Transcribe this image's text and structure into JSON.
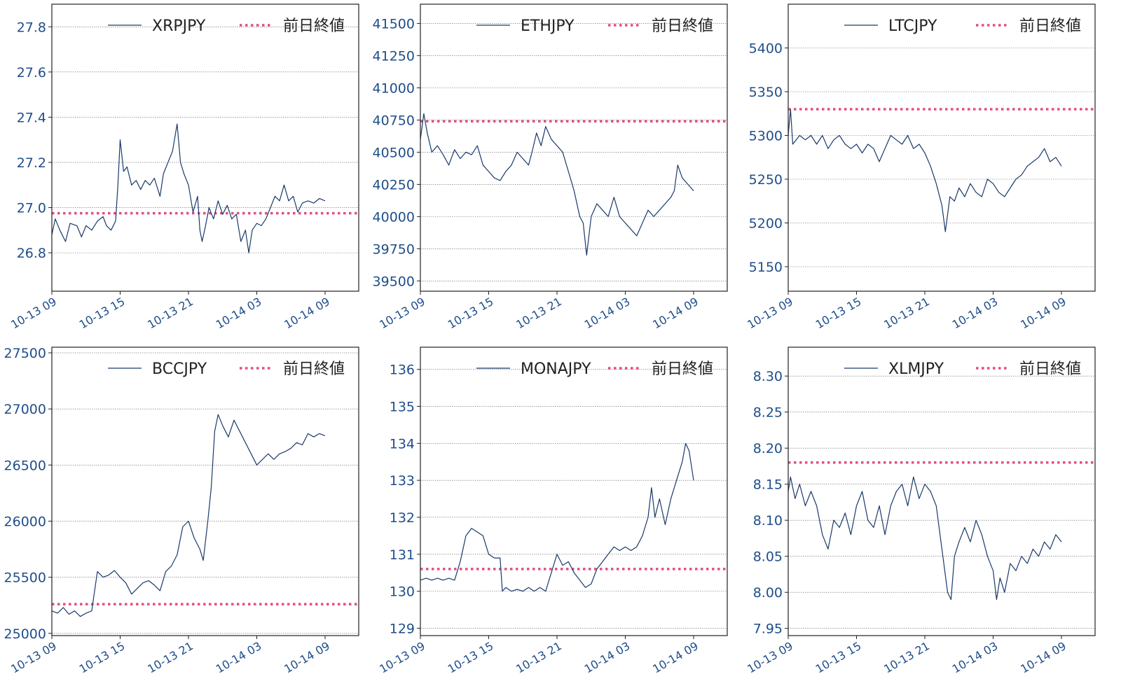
{
  "colors": {
    "series": "#1a3a6b",
    "prev_close": "#e0507a",
    "tick_text": "#1f4e8a",
    "grid": "#666666",
    "frame": "#222222"
  },
  "x_ticks": [
    "10-13 09",
    "10-13 15",
    "10-13 21",
    "10-14 03",
    "10-14 09"
  ],
  "chart_data": [
    {
      "type": "line",
      "series": [
        {
          "name": "XRPJPY"
        },
        {
          "name": "前日終値"
        }
      ],
      "ylim": [
        26.63,
        27.9
      ],
      "yticks": [
        "26.8",
        "27.0",
        "27.2",
        "27.4",
        "27.6",
        "27.8"
      ],
      "prev_close": 26.975,
      "points": [
        [
          0,
          26.88
        ],
        [
          0.3,
          26.95
        ],
        [
          0.7,
          26.9
        ],
        [
          1.2,
          26.85
        ],
        [
          1.6,
          26.93
        ],
        [
          2.2,
          26.92
        ],
        [
          2.6,
          26.87
        ],
        [
          3,
          26.92
        ],
        [
          3.5,
          26.9
        ],
        [
          4,
          26.94
        ],
        [
          4.5,
          26.96
        ],
        [
          4.8,
          26.92
        ],
        [
          5.2,
          26.9
        ],
        [
          5.6,
          26.94
        ],
        [
          5.8,
          27.1
        ],
        [
          6,
          27.3
        ],
        [
          6.3,
          27.16
        ],
        [
          6.6,
          27.18
        ],
        [
          7,
          27.1
        ],
        [
          7.4,
          27.12
        ],
        [
          7.8,
          27.08
        ],
        [
          8.2,
          27.12
        ],
        [
          8.6,
          27.1
        ],
        [
          9,
          27.13
        ],
        [
          9.5,
          27.05
        ],
        [
          9.8,
          27.15
        ],
        [
          10.2,
          27.2
        ],
        [
          10.6,
          27.25
        ],
        [
          11,
          27.37
        ],
        [
          11.3,
          27.2
        ],
        [
          11.6,
          27.15
        ],
        [
          12,
          27.1
        ],
        [
          12.4,
          26.98
        ],
        [
          12.8,
          27.05
        ],
        [
          13,
          26.9
        ],
        [
          13.2,
          26.85
        ],
        [
          13.5,
          26.92
        ],
        [
          13.8,
          27.0
        ],
        [
          14.2,
          26.95
        ],
        [
          14.6,
          27.03
        ],
        [
          15,
          26.97
        ],
        [
          15.4,
          27.01
        ],
        [
          15.8,
          26.95
        ],
        [
          16.2,
          26.97
        ],
        [
          16.6,
          26.85
        ],
        [
          17,
          26.9
        ],
        [
          17.3,
          26.8
        ],
        [
          17.6,
          26.9
        ],
        [
          18,
          26.93
        ],
        [
          18.4,
          26.92
        ],
        [
          18.8,
          26.95
        ],
        [
          19.2,
          27.0
        ],
        [
          19.6,
          27.05
        ],
        [
          20,
          27.03
        ],
        [
          20.4,
          27.1
        ],
        [
          20.8,
          27.03
        ],
        [
          21.2,
          27.05
        ],
        [
          21.6,
          26.98
        ],
        [
          22,
          27.02
        ],
        [
          22.5,
          27.03
        ],
        [
          23,
          27.02
        ],
        [
          23.5,
          27.04
        ],
        [
          24,
          27.03
        ]
      ]
    },
    {
      "type": "line",
      "series": [
        {
          "name": "ETHJPY"
        },
        {
          "name": "前日終値"
        }
      ],
      "ylim": [
        39420,
        41650
      ],
      "yticks": [
        "39500",
        "39750",
        "40000",
        "40250",
        "40500",
        "40750",
        "41000",
        "41250",
        "41500"
      ],
      "prev_close": 40740,
      "points": [
        [
          0,
          40600
        ],
        [
          0.3,
          40800
        ],
        [
          0.6,
          40650
        ],
        [
          1,
          40500
        ],
        [
          1.5,
          40550
        ],
        [
          2,
          40480
        ],
        [
          2.5,
          40400
        ],
        [
          3,
          40520
        ],
        [
          3.5,
          40450
        ],
        [
          4,
          40500
        ],
        [
          4.5,
          40480
        ],
        [
          5,
          40550
        ],
        [
          5.5,
          40400
        ],
        [
          6,
          40350
        ],
        [
          6.5,
          40300
        ],
        [
          7,
          40280
        ],
        [
          7.5,
          40350
        ],
        [
          8,
          40400
        ],
        [
          8.5,
          40500
        ],
        [
          9,
          40450
        ],
        [
          9.5,
          40400
        ],
        [
          9.8,
          40500
        ],
        [
          10.2,
          40650
        ],
        [
          10.6,
          40550
        ],
        [
          11,
          40700
        ],
        [
          11.5,
          40600
        ],
        [
          12,
          40550
        ],
        [
          12.5,
          40500
        ],
        [
          13,
          40350
        ],
        [
          13.5,
          40200
        ],
        [
          14,
          40000
        ],
        [
          14.3,
          39950
        ],
        [
          14.6,
          39700
        ],
        [
          15,
          40000
        ],
        [
          15.5,
          40100
        ],
        [
          16,
          40050
        ],
        [
          16.5,
          40000
        ],
        [
          17,
          40150
        ],
        [
          17.5,
          40000
        ],
        [
          18,
          39950
        ],
        [
          18.5,
          39900
        ],
        [
          19,
          39850
        ],
        [
          19.5,
          39950
        ],
        [
          20,
          40050
        ],
        [
          20.5,
          40000
        ],
        [
          21,
          40050
        ],
        [
          21.5,
          40100
        ],
        [
          22,
          40150
        ],
        [
          22.3,
          40200
        ],
        [
          22.6,
          40400
        ],
        [
          23,
          40300
        ],
        [
          23.5,
          40250
        ],
        [
          24,
          40200
        ]
      ]
    },
    {
      "type": "line",
      "series": [
        {
          "name": "LTCJPY"
        },
        {
          "name": "前日終値"
        }
      ],
      "ylim": [
        5122,
        5450
      ],
      "yticks": [
        "5150",
        "5200",
        "5250",
        "5300",
        "5350",
        "5400"
      ],
      "prev_close": 5330,
      "points": [
        [
          0,
          5300
        ],
        [
          0.2,
          5330
        ],
        [
          0.4,
          5290
        ],
        [
          1,
          5300
        ],
        [
          1.5,
          5295
        ],
        [
          2,
          5300
        ],
        [
          2.5,
          5290
        ],
        [
          3,
          5300
        ],
        [
          3.5,
          5285
        ],
        [
          4,
          5295
        ],
        [
          4.5,
          5300
        ],
        [
          5,
          5290
        ],
        [
          5.5,
          5285
        ],
        [
          6,
          5290
        ],
        [
          6.5,
          5280
        ],
        [
          7,
          5290
        ],
        [
          7.5,
          5285
        ],
        [
          8,
          5270
        ],
        [
          8.5,
          5285
        ],
        [
          9,
          5300
        ],
        [
          9.5,
          5295
        ],
        [
          10,
          5290
        ],
        [
          10.5,
          5300
        ],
        [
          11,
          5285
        ],
        [
          11.5,
          5290
        ],
        [
          12,
          5280
        ],
        [
          12.5,
          5265
        ],
        [
          13,
          5245
        ],
        [
          13.5,
          5220
        ],
        [
          13.8,
          5190
        ],
        [
          14.2,
          5230
        ],
        [
          14.6,
          5225
        ],
        [
          15,
          5240
        ],
        [
          15.5,
          5230
        ],
        [
          16,
          5245
        ],
        [
          16.5,
          5235
        ],
        [
          17,
          5230
        ],
        [
          17.5,
          5250
        ],
        [
          18,
          5245
        ],
        [
          18.5,
          5235
        ],
        [
          19,
          5230
        ],
        [
          19.5,
          5240
        ],
        [
          20,
          5250
        ],
        [
          20.5,
          5255
        ],
        [
          21,
          5265
        ],
        [
          21.5,
          5270
        ],
        [
          22,
          5275
        ],
        [
          22.5,
          5285
        ],
        [
          23,
          5270
        ],
        [
          23.5,
          5275
        ],
        [
          24,
          5265
        ]
      ]
    },
    {
      "type": "line",
      "series": [
        {
          "name": "BCCJPY"
        },
        {
          "name": "前日終値"
        }
      ],
      "ylim": [
        24980,
        27550
      ],
      "yticks": [
        "25000",
        "25500",
        "26000",
        "26500",
        "27000",
        "27500"
      ],
      "prev_close": 25260,
      "points": [
        [
          0,
          25200
        ],
        [
          0.5,
          25180
        ],
        [
          1,
          25230
        ],
        [
          1.5,
          25170
        ],
        [
          2,
          25200
        ],
        [
          2.5,
          25150
        ],
        [
          3,
          25180
        ],
        [
          3.5,
          25200
        ],
        [
          4,
          25550
        ],
        [
          4.5,
          25500
        ],
        [
          5,
          25520
        ],
        [
          5.5,
          25560
        ],
        [
          6,
          25500
        ],
        [
          6.5,
          25450
        ],
        [
          7,
          25350
        ],
        [
          7.5,
          25400
        ],
        [
          8,
          25450
        ],
        [
          8.5,
          25470
        ],
        [
          9,
          25430
        ],
        [
          9.5,
          25380
        ],
        [
          10,
          25550
        ],
        [
          10.5,
          25600
        ],
        [
          11,
          25700
        ],
        [
          11.5,
          25950
        ],
        [
          12,
          26000
        ],
        [
          12.5,
          25850
        ],
        [
          13,
          25750
        ],
        [
          13.3,
          25650
        ],
        [
          13.7,
          26000
        ],
        [
          14,
          26300
        ],
        [
          14.3,
          26800
        ],
        [
          14.6,
          26950
        ],
        [
          15,
          26850
        ],
        [
          15.5,
          26750
        ],
        [
          16,
          26900
        ],
        [
          16.5,
          26800
        ],
        [
          17,
          26700
        ],
        [
          17.5,
          26600
        ],
        [
          18,
          26500
        ],
        [
          18.5,
          26550
        ],
        [
          19,
          26600
        ],
        [
          19.5,
          26550
        ],
        [
          20,
          26600
        ],
        [
          20.5,
          26620
        ],
        [
          21,
          26650
        ],
        [
          21.5,
          26700
        ],
        [
          22,
          26680
        ],
        [
          22.5,
          26780
        ],
        [
          23,
          26750
        ],
        [
          23.5,
          26780
        ],
        [
          24,
          26760
        ]
      ]
    },
    {
      "type": "line",
      "series": [
        {
          "name": "MONAJPY"
        },
        {
          "name": "前日終値"
        }
      ],
      "ylim": [
        128.8,
        136.6
      ],
      "yticks": [
        "129",
        "130",
        "131",
        "132",
        "133",
        "134",
        "135",
        "136"
      ],
      "prev_close": 130.6,
      "points": [
        [
          0,
          130.3
        ],
        [
          0.5,
          130.35
        ],
        [
          1,
          130.3
        ],
        [
          1.5,
          130.35
        ],
        [
          2,
          130.3
        ],
        [
          2.5,
          130.35
        ],
        [
          3,
          130.3
        ],
        [
          3.5,
          130.8
        ],
        [
          4,
          131.5
        ],
        [
          4.5,
          131.7
        ],
        [
          5,
          131.6
        ],
        [
          5.5,
          131.5
        ],
        [
          6,
          131.0
        ],
        [
          6.5,
          130.9
        ],
        [
          7,
          130.9
        ],
        [
          7.2,
          130.0
        ],
        [
          7.5,
          130.1
        ],
        [
          8,
          130.0
        ],
        [
          8.5,
          130.05
        ],
        [
          9,
          130.0
        ],
        [
          9.5,
          130.1
        ],
        [
          10,
          130.0
        ],
        [
          10.5,
          130.1
        ],
        [
          11,
          130.0
        ],
        [
          11.5,
          130.5
        ],
        [
          12,
          131.0
        ],
        [
          12.5,
          130.7
        ],
        [
          13,
          130.8
        ],
        [
          13.5,
          130.5
        ],
        [
          14,
          130.3
        ],
        [
          14.5,
          130.1
        ],
        [
          15,
          130.2
        ],
        [
          15.5,
          130.6
        ],
        [
          16,
          130.8
        ],
        [
          16.5,
          131.0
        ],
        [
          17,
          131.2
        ],
        [
          17.5,
          131.1
        ],
        [
          18,
          131.2
        ],
        [
          18.5,
          131.1
        ],
        [
          19,
          131.2
        ],
        [
          19.5,
          131.5
        ],
        [
          20,
          132.0
        ],
        [
          20.3,
          132.8
        ],
        [
          20.6,
          132.0
        ],
        [
          21,
          132.5
        ],
        [
          21.5,
          131.8
        ],
        [
          22,
          132.5
        ],
        [
          22.5,
          133.0
        ],
        [
          23,
          133.5
        ],
        [
          23.3,
          134.0
        ],
        [
          23.6,
          133.8
        ],
        [
          24,
          133.0
        ]
      ]
    },
    {
      "type": "line",
      "series": [
        {
          "name": "XLMJPY"
        },
        {
          "name": "前日終値"
        }
      ],
      "ylim": [
        7.94,
        8.34
      ],
      "yticks": [
        "7.95",
        "8.00",
        "8.05",
        "8.10",
        "8.15",
        "8.20",
        "8.25",
        "8.30"
      ],
      "prev_close": 8.18,
      "points": [
        [
          0,
          8.14
        ],
        [
          0.2,
          8.16
        ],
        [
          0.6,
          8.13
        ],
        [
          1,
          8.15
        ],
        [
          1.5,
          8.12
        ],
        [
          2,
          8.14
        ],
        [
          2.5,
          8.12
        ],
        [
          3,
          8.08
        ],
        [
          3.5,
          8.06
        ],
        [
          4,
          8.1
        ],
        [
          4.5,
          8.09
        ],
        [
          5,
          8.11
        ],
        [
          5.5,
          8.08
        ],
        [
          6,
          8.12
        ],
        [
          6.5,
          8.14
        ],
        [
          7,
          8.1
        ],
        [
          7.5,
          8.09
        ],
        [
          8,
          8.12
        ],
        [
          8.5,
          8.08
        ],
        [
          9,
          8.12
        ],
        [
          9.5,
          8.14
        ],
        [
          10,
          8.15
        ],
        [
          10.5,
          8.12
        ],
        [
          11,
          8.16
        ],
        [
          11.5,
          8.13
        ],
        [
          12,
          8.15
        ],
        [
          12.5,
          8.14
        ],
        [
          13,
          8.12
        ],
        [
          13.5,
          8.06
        ],
        [
          14,
          8.0
        ],
        [
          14.3,
          7.99
        ],
        [
          14.6,
          8.05
        ],
        [
          15,
          8.07
        ],
        [
          15.5,
          8.09
        ],
        [
          16,
          8.07
        ],
        [
          16.5,
          8.1
        ],
        [
          17,
          8.08
        ],
        [
          17.5,
          8.05
        ],
        [
          18,
          8.03
        ],
        [
          18.3,
          7.99
        ],
        [
          18.6,
          8.02
        ],
        [
          19,
          8.0
        ],
        [
          19.5,
          8.04
        ],
        [
          20,
          8.03
        ],
        [
          20.5,
          8.05
        ],
        [
          21,
          8.04
        ],
        [
          21.5,
          8.06
        ],
        [
          22,
          8.05
        ],
        [
          22.5,
          8.07
        ],
        [
          23,
          8.06
        ],
        [
          23.5,
          8.08
        ],
        [
          24,
          8.07
        ]
      ]
    }
  ]
}
